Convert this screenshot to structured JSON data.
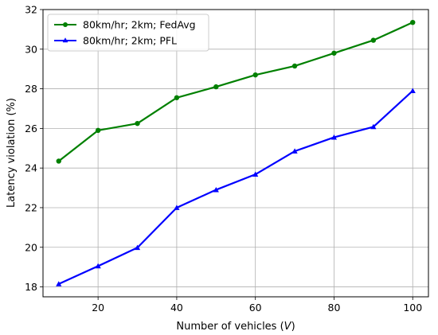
{
  "chart_data": {
    "type": "line",
    "title": "",
    "xlabel": "Number of vehicles (V)",
    "xlabel_parts": [
      "Number of vehicles (",
      "V",
      ")"
    ],
    "ylabel": "Latency violation (%)",
    "xlim": [
      6,
      104
    ],
    "ylim": [
      17.5,
      32
    ],
    "xticks": [
      20,
      40,
      60,
      80,
      100
    ],
    "yticks": [
      18,
      20,
      22,
      24,
      26,
      28,
      30,
      32
    ],
    "grid": true,
    "legend_position": "upper-left",
    "x": [
      10,
      20,
      30,
      40,
      50,
      60,
      70,
      80,
      90,
      100
    ],
    "series": [
      {
        "name": "80km/hr; 2km; FedAvg",
        "color": "#008000",
        "marker": "circle",
        "values": [
          24.35,
          25.9,
          26.25,
          27.55,
          28.1,
          28.7,
          29.15,
          29.8,
          30.45,
          31.35
        ]
      },
      {
        "name": "80km/hr; 2km; PFL",
        "color": "#0000ff",
        "marker": "triangle",
        "values": [
          18.15,
          19.05,
          19.98,
          22.0,
          22.9,
          23.68,
          24.85,
          25.55,
          26.08,
          27.9
        ]
      }
    ]
  }
}
